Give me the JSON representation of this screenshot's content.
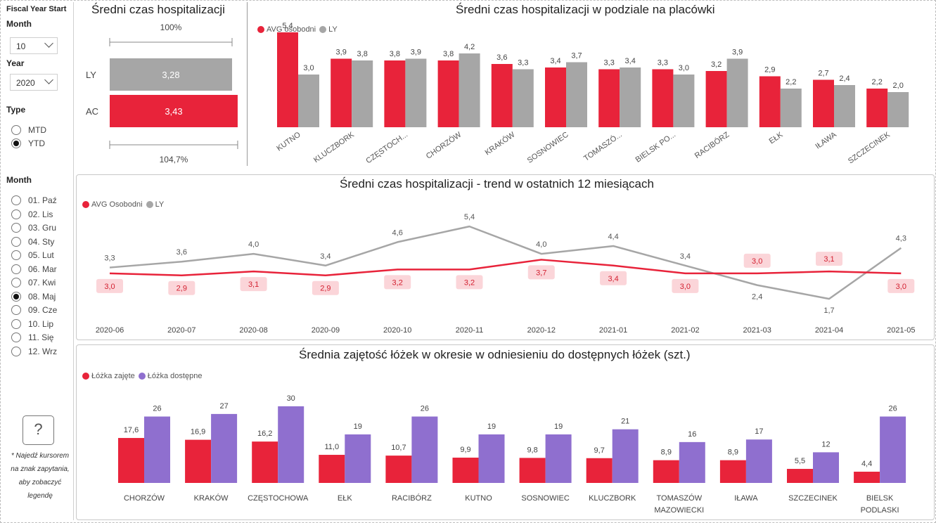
{
  "colors": {
    "red": "#e8233a",
    "gray": "#a6a6a6",
    "purple": "#8f6fcf",
    "pill": "#fbd5d9"
  },
  "sidebar": {
    "fiscal_title": "Fiscal Year Start",
    "month_label": "Month",
    "month_value": "10",
    "year_label": "Year",
    "year_value": "2020",
    "type_label": "Type",
    "type_options": [
      {
        "label": "MTD",
        "selected": false
      },
      {
        "label": "YTD",
        "selected": true
      }
    ],
    "month_list_label": "Month",
    "months": [
      {
        "label": "01. Paź",
        "selected": false
      },
      {
        "label": "02. Lis",
        "selected": false
      },
      {
        "label": "03. Gru",
        "selected": false
      },
      {
        "label": "04. Sty",
        "selected": false
      },
      {
        "label": "05. Lut",
        "selected": false
      },
      {
        "label": "06. Mar",
        "selected": false
      },
      {
        "label": "07. Kwi",
        "selected": false
      },
      {
        "label": "08. Maj",
        "selected": true
      },
      {
        "label": "09. Cze",
        "selected": false
      },
      {
        "label": "10. Lip",
        "selected": false
      },
      {
        "label": "11. Się",
        "selected": false
      },
      {
        "label": "12. Wrz",
        "selected": false
      }
    ],
    "help_symbol": "?",
    "help_note": "* Najedź kursorem na znak zapytania, aby zobaczyć legendę"
  },
  "chart_data": [
    {
      "id": "bullet",
      "type": "bar",
      "title": "Średni czas hospitalizacji",
      "categories": [
        "LY",
        "AC"
      ],
      "values": [
        3.28,
        3.43
      ],
      "value_labels": [
        "3,28",
        "3,43"
      ],
      "top_marker_label": "100%",
      "bottom_marker_label": "104,7%"
    },
    {
      "id": "facilities",
      "type": "bar",
      "title": "Średni czas hospitalizacji w podziale na placówki",
      "legend": [
        "AVG osobodni",
        "LY"
      ],
      "legend_placement": "top-left",
      "categories": [
        "KUTNO",
        "KLUCZBORK",
        "CZĘSTOCH...",
        "CHORZÓW",
        "KRAKÓW",
        "SOSNOWIEC",
        "TOMASZÓ...",
        "BIELSK PO...",
        "RACIBÓRZ",
        "EŁK",
        "IŁAWA",
        "SZCZECINEK"
      ],
      "series": [
        {
          "name": "AVG osobodni",
          "values": [
            5.4,
            3.9,
            3.8,
            3.8,
            3.6,
            3.4,
            3.3,
            3.3,
            3.2,
            2.9,
            2.7,
            2.2
          ],
          "labels": [
            "5,4",
            "3,9",
            "3,8",
            "3,8",
            "3,6",
            "3,4",
            "3,3",
            "3,3",
            "3,2",
            "2,9",
            "2,7",
            "2,2"
          ]
        },
        {
          "name": "LY",
          "values": [
            3.0,
            3.8,
            3.9,
            4.2,
            3.3,
            3.7,
            3.4,
            3.0,
            3.9,
            2.2,
            2.4,
            2.0
          ],
          "labels": [
            "3,0",
            "3,8",
            "3,9",
            "4,2",
            "3,3",
            "3,7",
            "3,4",
            "3,0",
            "3,9",
            "2,2",
            "2,4",
            "2,0"
          ]
        }
      ],
      "ylim": [
        0,
        6
      ]
    },
    {
      "id": "trend",
      "type": "line",
      "title": "Średni czas hospitalizacji - trend w ostatnich 12 miesiącach",
      "legend": [
        "AVG Osobodni",
        "LY"
      ],
      "legend_placement": "top-left",
      "x": [
        "2020-06",
        "2020-07",
        "2020-08",
        "2020-09",
        "2020-10",
        "2020-11",
        "2020-12",
        "2021-01",
        "2021-02",
        "2021-03",
        "2021-04",
        "2021-05"
      ],
      "series": [
        {
          "name": "AVG Osobodni",
          "values": [
            3.0,
            2.9,
            3.1,
            2.9,
            3.2,
            3.2,
            3.7,
            3.4,
            3.0,
            3.0,
            3.1,
            3.0
          ],
          "labels": [
            "3,0",
            "2,9",
            "3,1",
            "2,9",
            "3,2",
            "3,2",
            "3,7",
            "3,4",
            "3,0",
            "3,0",
            "3,1",
            "3,0"
          ]
        },
        {
          "name": "LY",
          "values": [
            3.3,
            3.6,
            4.0,
            3.4,
            4.6,
            5.4,
            4.0,
            4.4,
            3.4,
            2.4,
            1.7,
            4.3
          ],
          "labels": [
            "3,3",
            "3,6",
            "4,0",
            "3,4",
            "4,6",
            "5,4",
            "4,0",
            "4,4",
            "3,4",
            "2,4",
            "1,7",
            "4,3"
          ]
        }
      ],
      "ylim": [
        1.2,
        5.8
      ]
    },
    {
      "id": "beds",
      "type": "bar",
      "title": "Średnia zajętość łóżek w okresie w odniesieniu do dostępnych łóżek (szt.)",
      "legend": [
        "Łóżka zajęte",
        "Łóżka dostępne"
      ],
      "legend_placement": "top-left",
      "categories": [
        "CHORZÓW",
        "KRAKÓW",
        "CZĘSTOCHOWA",
        "EŁK",
        "RACIBÓRZ",
        "KUTNO",
        "SOSNOWIEC",
        "KLUCZBORK",
        "TOMASZÓW MAZOWIECKI",
        "IŁAWA",
        "SZCZECINEK",
        "BIELSK PODLASKI"
      ],
      "series": [
        {
          "name": "Łóżka zajęte",
          "values": [
            17.6,
            16.9,
            16.2,
            11.0,
            10.7,
            9.9,
            9.8,
            9.7,
            8.9,
            8.9,
            5.5,
            4.4
          ],
          "labels": [
            "17,6",
            "16,9",
            "16,2",
            "11,0",
            "10,7",
            "9,9",
            "9,8",
            "9,7",
            "8,9",
            "8,9",
            "5,5",
            "4,4"
          ]
        },
        {
          "name": "Łóżka dostępne",
          "values": [
            26,
            27,
            30,
            19,
            26,
            19,
            19,
            21,
            16,
            17,
            12,
            26
          ],
          "labels": [
            "26",
            "27",
            "30",
            "19",
            "26",
            "19",
            "19",
            "21",
            "16",
            "17",
            "12",
            "26"
          ]
        }
      ],
      "ylim": [
        0,
        30
      ]
    }
  ]
}
